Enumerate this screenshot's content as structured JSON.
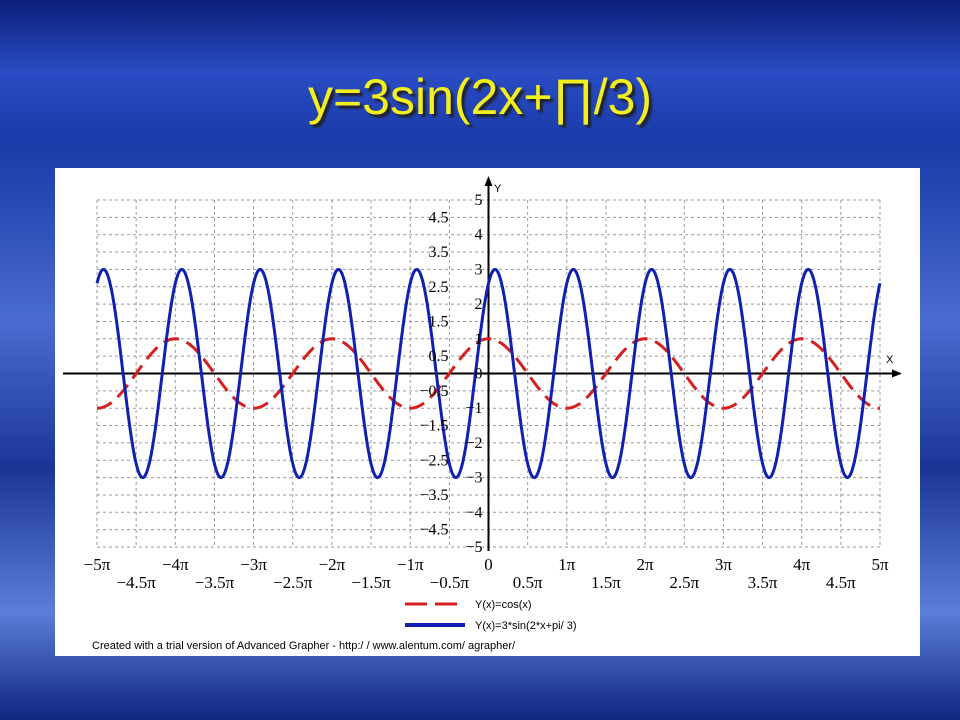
{
  "title": "y=3sin(2x+∏/3)",
  "chart_data": {
    "type": "line",
    "title": "",
    "xlabel": "X",
    "ylabel": "Y",
    "xlim_pi": [
      -5,
      5
    ],
    "ylim": [
      -5,
      5
    ],
    "grid": true,
    "x_tick_labels": [
      "−5π",
      "−4.5π",
      "−4π",
      "−3.5π",
      "−3π",
      "−2.5π",
      "−2π",
      "−1.5π",
      "−1π",
      "−0.5π",
      "0",
      "0.5π",
      "1π",
      "1.5π",
      "2π",
      "2.5π",
      "3π",
      "3.5π",
      "4π",
      "4.5π",
      "5π"
    ],
    "y_tick_labels": [
      "5",
      "4.5",
      "4",
      "3.5",
      "3",
      "2.5",
      "2",
      "1.5",
      "1",
      "0.5",
      "0",
      "−0.5",
      "−1",
      "−1.5",
      "−2",
      "−2.5",
      "−3",
      "−3.5",
      "−4",
      "−4.5",
      "−5"
    ],
    "series": [
      {
        "name": "Y(x)=cos(x)",
        "function": "cos(x)",
        "color": "#d42020",
        "style": "dashed"
      },
      {
        "name": "Y(x)=3*sin(2*x+pi/ 3)",
        "function": "3*sin(2*x+pi/3)",
        "color": "#1020b0",
        "style": "solid"
      }
    ],
    "legend": "bottom",
    "footer": "Created with a trial version of Advanced Grapher - http:/ / www.alentum.com/ agrapher/"
  }
}
